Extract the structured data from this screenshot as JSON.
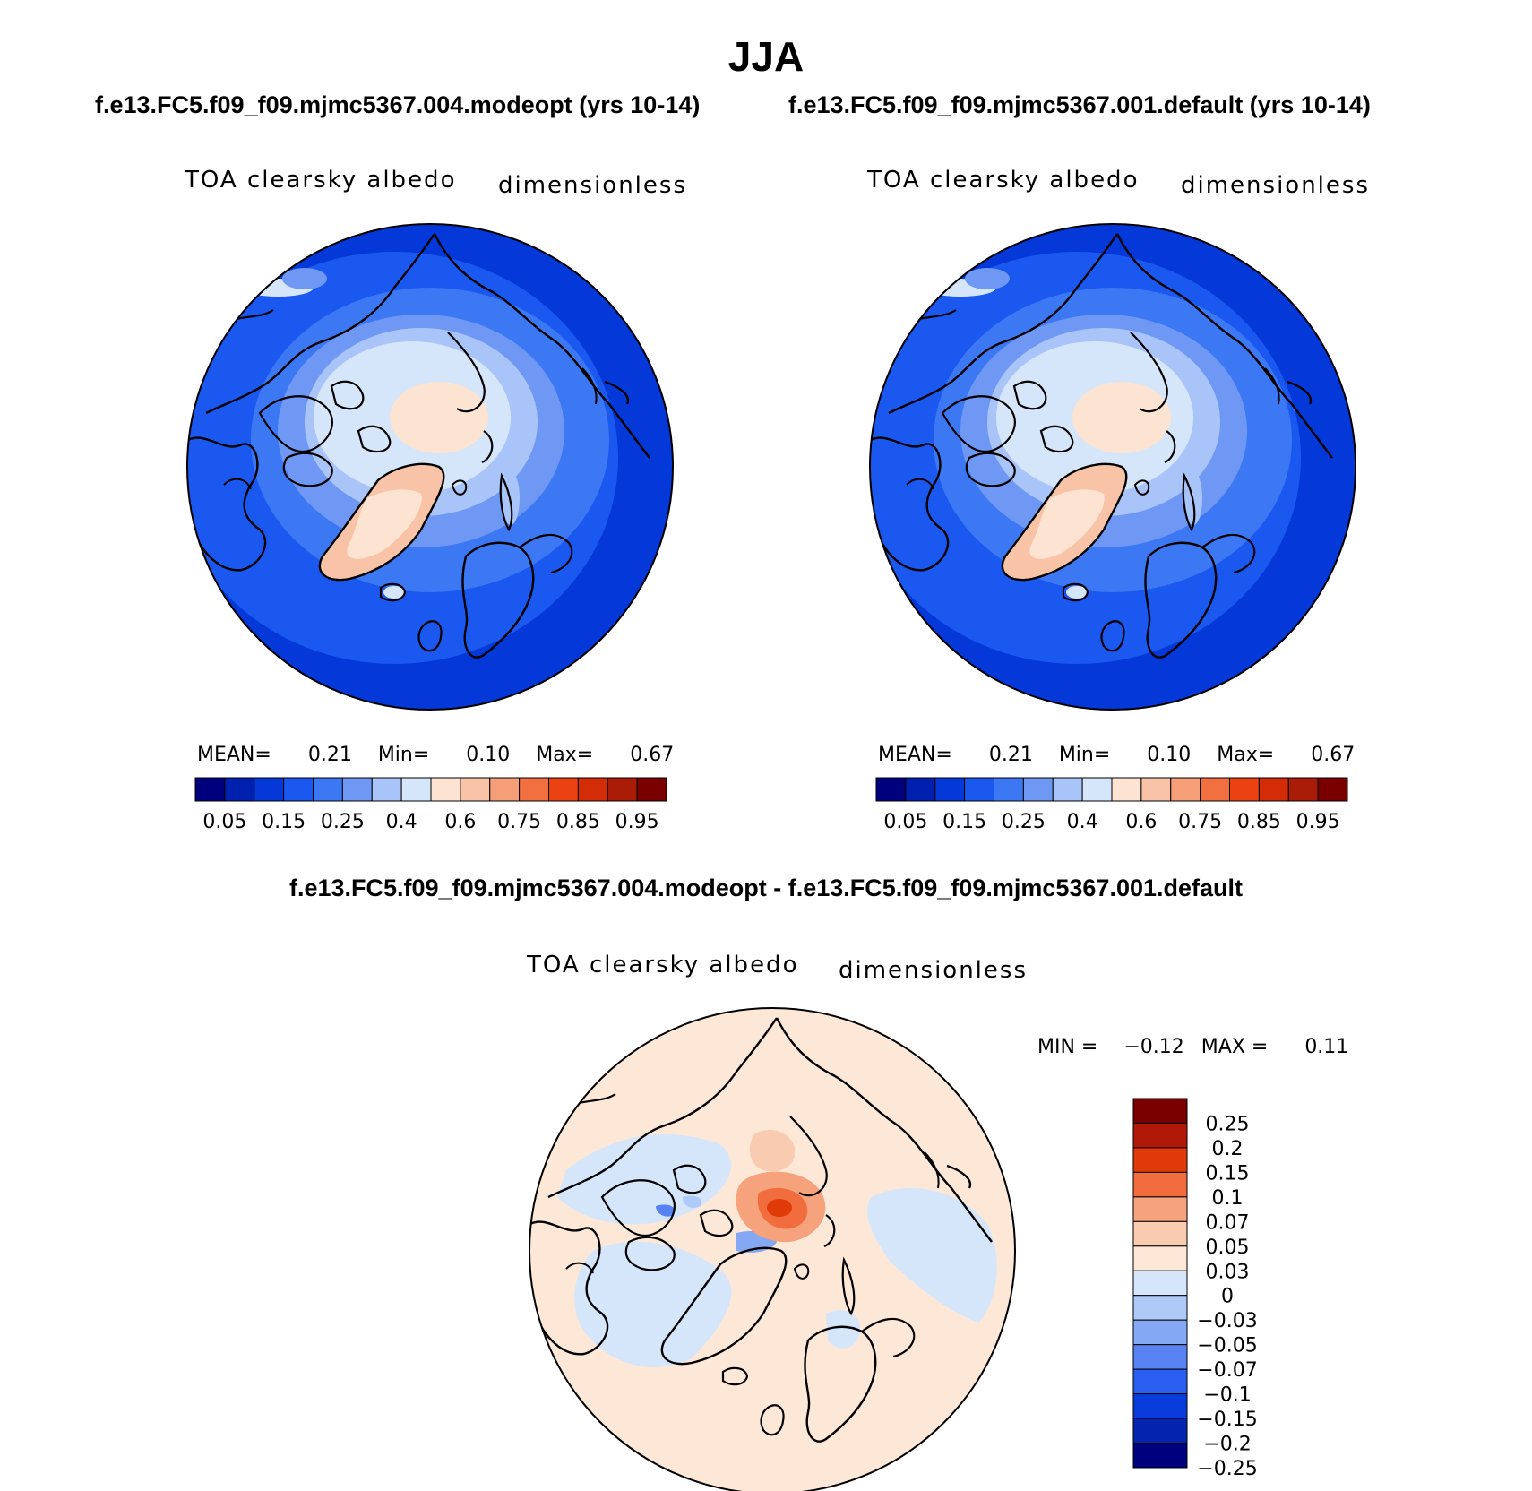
{
  "header": {
    "title": "JJA",
    "left_run": "f.e13.FC5.f09_f09.mjmc5367.004.modeopt (yrs 10-14)",
    "right_run": "f.e13.FC5.f09_f09.mjmc5367.001.default (yrs 10-14)",
    "difference_title": "f.e13.FC5.f09_f09.mjmc5367.004.modeopt - f.e13.FC5.f09_f09.mjmc5367.001.default"
  },
  "panels": {
    "left": {
      "variable": "TOA clearsky albedo",
      "units": "dimensionless",
      "mean_label": "MEAN=",
      "mean": "0.21",
      "min_label": "Min=",
      "min": "0.10",
      "max_label": "Max=",
      "max": "0.67"
    },
    "right": {
      "variable": "TOA clearsky albedo",
      "units": "dimensionless",
      "mean_label": "MEAN=",
      "mean": "0.21",
      "min_label": "Min=",
      "min": "0.10",
      "max_label": "Max=",
      "max": "0.67"
    },
    "diff": {
      "variable": "TOA clearsky albedo",
      "units": "dimensionless",
      "min_label": "MIN =",
      "min": "−0.12",
      "max_label": "MAX =",
      "max": "0.11"
    }
  },
  "colorbars": {
    "field_colors": [
      "#00007f",
      "#0020b0",
      "#0438d8",
      "#1a58f0",
      "#3c78f4",
      "#6e98f4",
      "#a9c4f8",
      "#d6e6fa",
      "#fde3d2",
      "#f9c3a8",
      "#f69e78",
      "#f27040",
      "#ec4212",
      "#d42c06",
      "#aa1c08",
      "#7a0000"
    ],
    "field_labels": [
      "0.05",
      "0.15",
      "0.25",
      "0.4",
      "0.6",
      "0.75",
      "0.85",
      "0.95"
    ],
    "diff_colors_top_to_bottom": [
      "#7a0000",
      "#b01808",
      "#e03a08",
      "#f26d3d",
      "#f6a27c",
      "#f9cbb0",
      "#fde8d8",
      "#d6e6fa",
      "#aecaf8",
      "#84a8f4",
      "#5682f2",
      "#2a5ef0",
      "#0a3cdc",
      "#0424b0",
      "#00007f"
    ],
    "diff_labels": [
      "0.25",
      "0.2",
      "0.15",
      "0.1",
      "0.07",
      "0.05",
      "0.03",
      "0",
      "−0.03",
      "−0.05",
      "−0.07",
      "−0.1",
      "−0.15",
      "−0.2",
      "−0.25"
    ]
  }
}
